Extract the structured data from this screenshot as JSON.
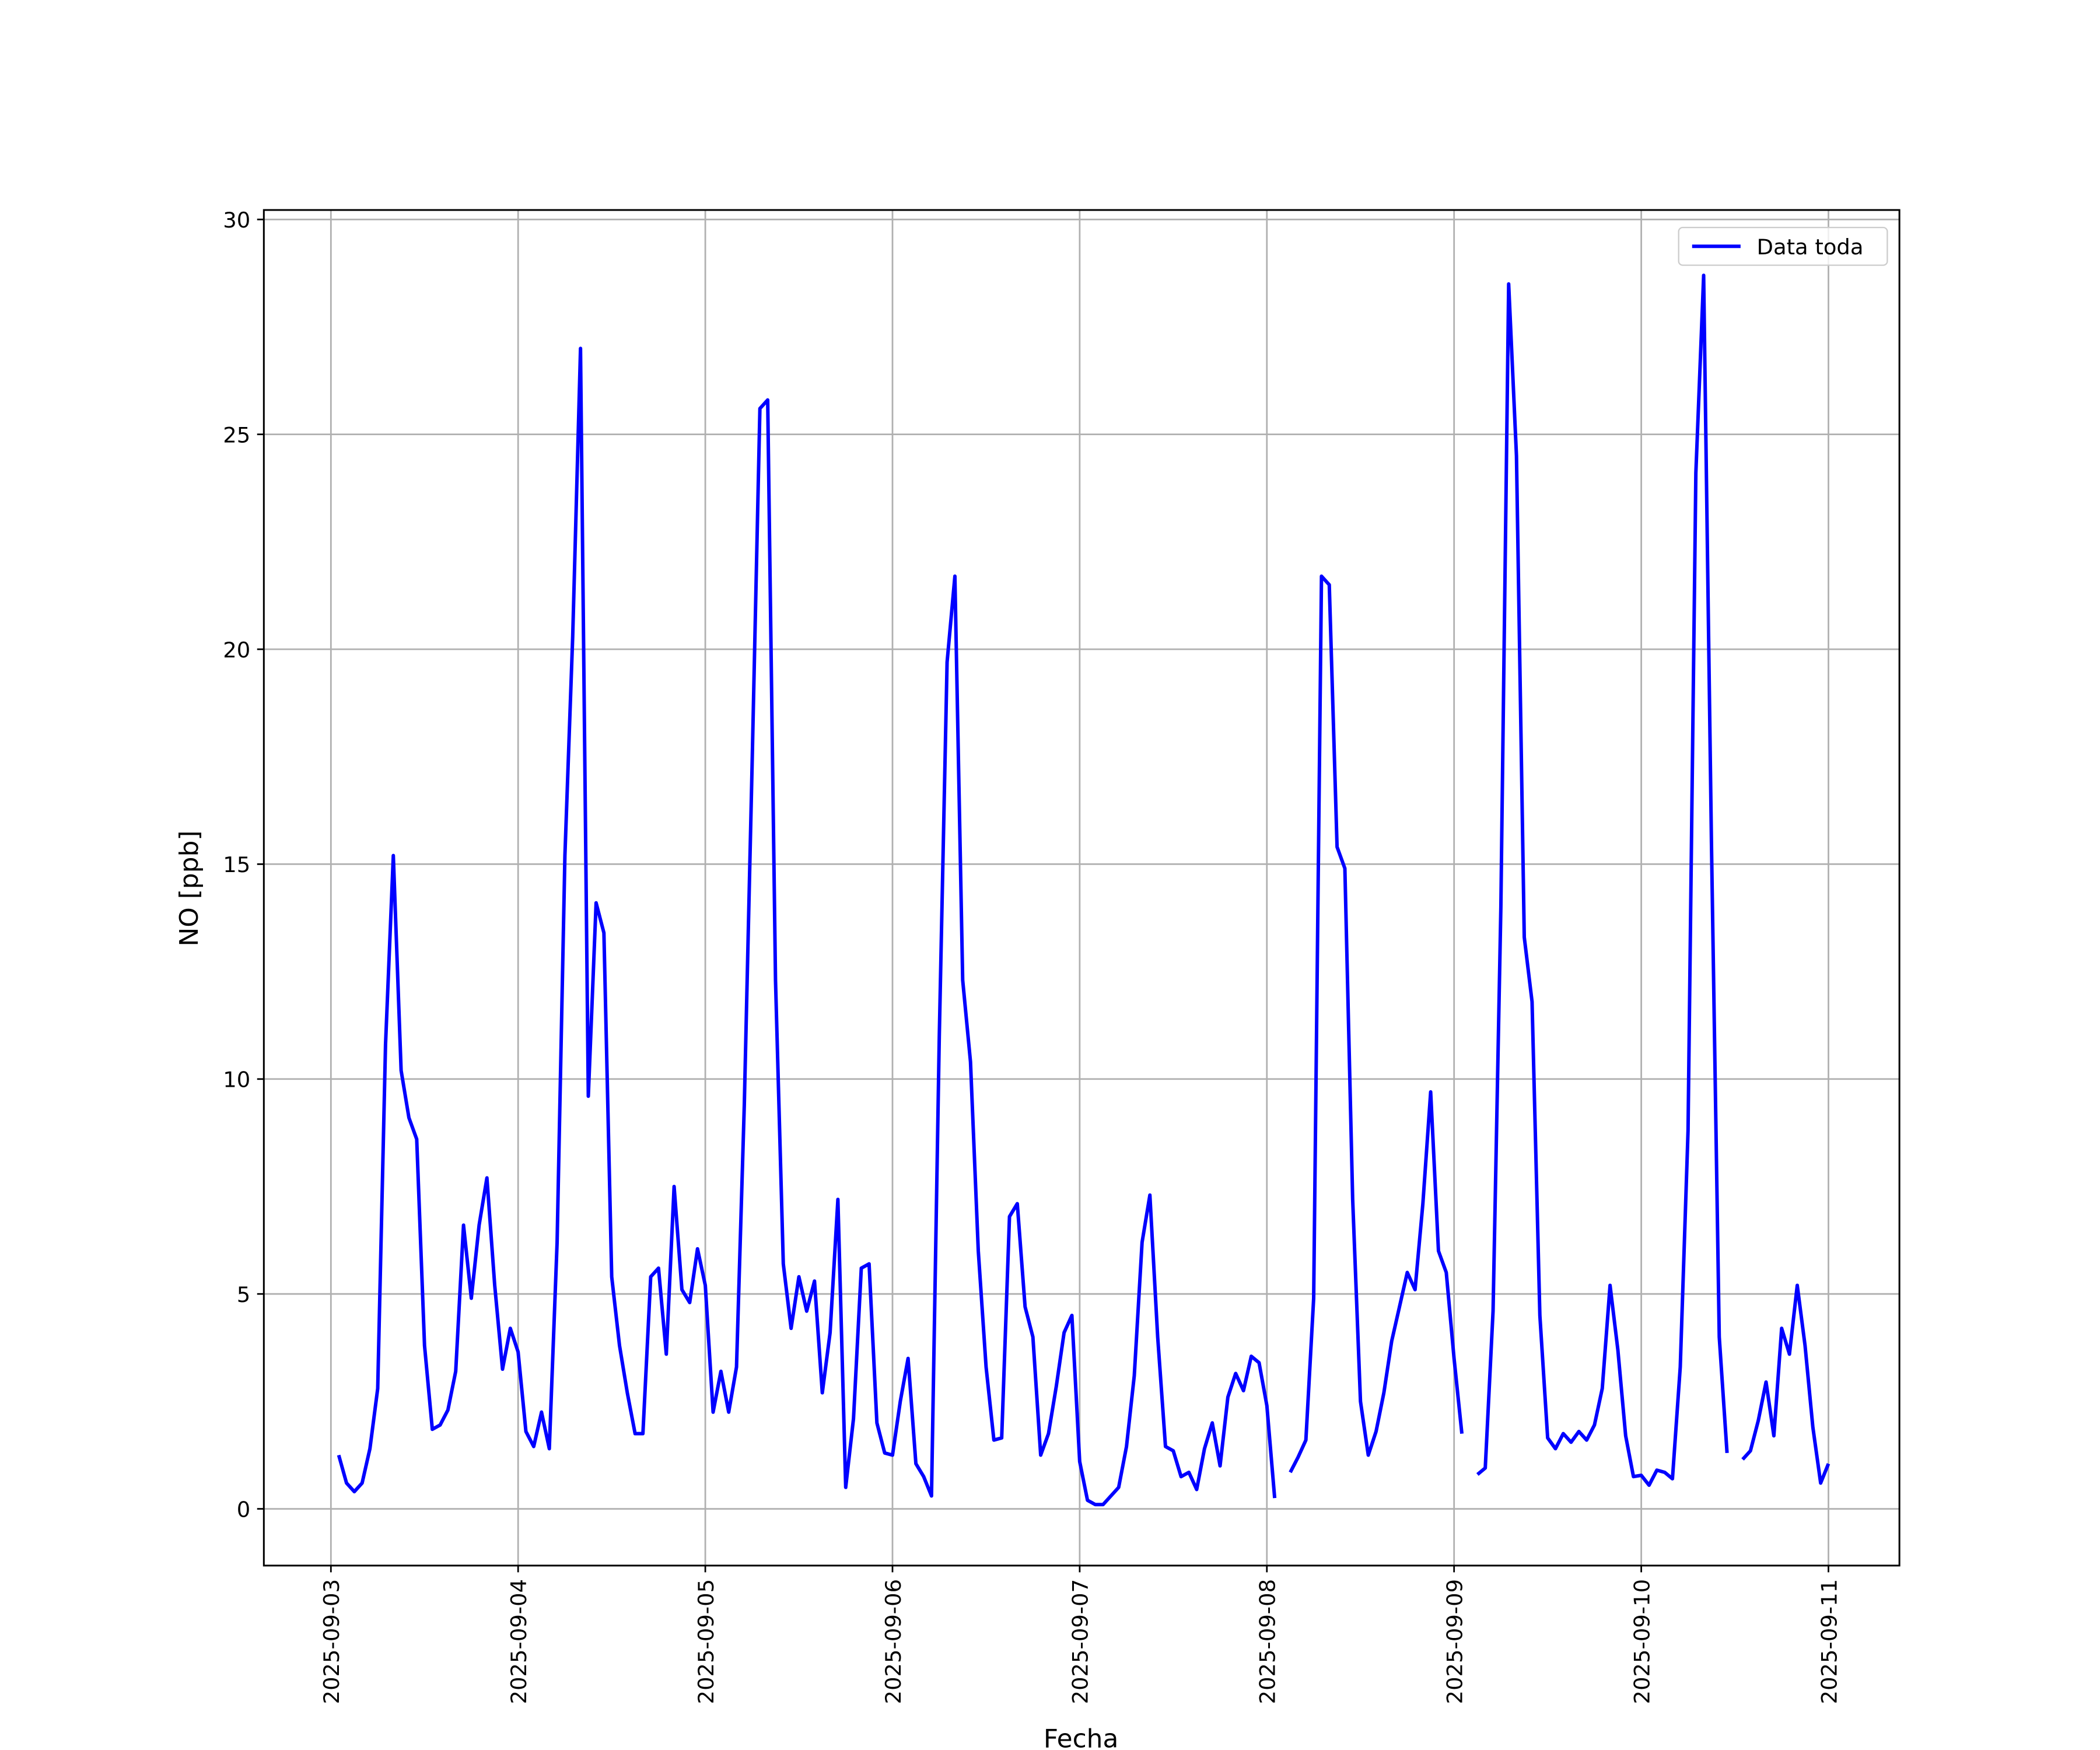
{
  "chart_data": {
    "type": "line",
    "xlabel": "Fecha",
    "ylabel": "NO [ppb]",
    "x": [
      1,
      2,
      3,
      4,
      5,
      6,
      7,
      8,
      9,
      10,
      11,
      12,
      13,
      14,
      15,
      16,
      17,
      18,
      19,
      20,
      21,
      22,
      23,
      24,
      25,
      26,
      27,
      28,
      29,
      30,
      31,
      32,
      33,
      34,
      35,
      36,
      37,
      38,
      39,
      40,
      41,
      42,
      43,
      44,
      45,
      46,
      47,
      48,
      49,
      50,
      51,
      52,
      53,
      54,
      55,
      56,
      57,
      58,
      59,
      60,
      61,
      62,
      63,
      64,
      65,
      66,
      67,
      68,
      69,
      70,
      71,
      72,
      73,
      74,
      75,
      76,
      77,
      78,
      79,
      80,
      81,
      82,
      83,
      84,
      85,
      86,
      87,
      88,
      89,
      90,
      91,
      92,
      93,
      94,
      95,
      96,
      97,
      98,
      99,
      100,
      101,
      102,
      103,
      104,
      105,
      106,
      107,
      108,
      109,
      110,
      111,
      112,
      113,
      114,
      115,
      116,
      117,
      118,
      119,
      120,
      121,
      122,
      123,
      124,
      125,
      126,
      127,
      128,
      129,
      130,
      131,
      132,
      133,
      134,
      135,
      136,
      137,
      138,
      139,
      140,
      141,
      142,
      143,
      144,
      145,
      146,
      147,
      148,
      149,
      150,
      151,
      152,
      153,
      154,
      155,
      156,
      157,
      158,
      159,
      160,
      161,
      162,
      163,
      164,
      165,
      166,
      167,
      168,
      169,
      170,
      171,
      172,
      173,
      174,
      175,
      176,
      177,
      178,
      179,
      180,
      181,
      182,
      183,
      184,
      185,
      186,
      187,
      188,
      189,
      190,
      191,
      192
    ],
    "series": [
      {
        "name": "Data toda",
        "color": "#0000ff",
        "values": [
          1.25,
          0.6,
          0.4,
          0.6,
          1.4,
          2.8,
          10.8,
          15.2,
          10.2,
          9.1,
          8.6,
          3.8,
          1.85,
          1.95,
          2.3,
          3.2,
          6.6,
          4.9,
          6.6,
          7.7,
          5.2,
          3.25,
          4.2,
          3.65,
          1.8,
          1.45,
          2.25,
          1.4,
          6.2,
          15.2,
          20.3,
          27.0,
          9.6,
          14.1,
          13.4,
          5.4,
          3.8,
          2.7,
          1.75,
          1.75,
          5.4,
          5.6,
          3.6,
          7.5,
          5.1,
          4.8,
          6.05,
          5.2,
          2.25,
          3.2,
          2.25,
          3.3,
          9.4,
          17.3,
          25.6,
          25.8,
          12.3,
          5.7,
          4.2,
          5.4,
          4.6,
          5.3,
          2.7,
          4.1,
          7.2,
          0.5,
          2.1,
          5.6,
          5.7,
          2.0,
          1.3,
          1.25,
          2.5,
          3.5,
          1.05,
          0.75,
          0.3,
          11.0,
          19.7,
          21.7,
          12.3,
          10.4,
          6.0,
          3.3,
          1.6,
          1.65,
          6.8,
          7.1,
          4.7,
          4.0,
          1.25,
          1.75,
          2.85,
          4.1,
          4.5,
          1.1,
          0.2,
          0.1,
          0.1,
          0.3,
          0.5,
          1.45,
          3.1,
          6.2,
          7.3,
          4.0,
          1.45,
          1.35,
          0.75,
          0.85,
          0.45,
          1.4,
          2.0,
          1.0,
          2.6,
          3.15,
          2.75,
          3.55,
          3.4,
          2.4,
          0.25,
          null,
          0.85,
          1.2,
          1.6,
          4.9,
          21.7,
          21.5,
          15.4,
          14.9,
          7.2,
          2.5,
          1.25,
          1.8,
          2.7,
          3.9,
          4.7,
          5.5,
          5.1,
          7.1,
          9.7,
          6.0,
          5.5,
          3.5,
          1.75,
          null,
          0.8,
          0.95,
          4.6,
          14.0,
          28.5,
          24.5,
          13.3,
          11.8,
          4.5,
          1.65,
          1.4,
          1.75,
          1.55,
          1.8,
          1.6,
          1.95,
          2.8,
          5.2,
          3.7,
          1.7,
          0.75,
          0.78,
          0.55,
          0.9,
          0.85,
          0.7,
          3.3,
          8.8,
          24.1,
          28.7,
          15.5,
          4.0,
          1.3,
          null,
          1.15,
          1.35,
          2.05,
          2.95,
          1.7,
          4.2,
          3.6,
          5.2,
          3.8,
          1.9,
          0.6,
          1.05
        ]
      }
    ],
    "xlim": [
      -8.6,
      201.1
    ],
    "xticks": [
      {
        "value": 0,
        "label": "2025-09-03"
      },
      {
        "value": 24,
        "label": "2025-09-04"
      },
      {
        "value": 48,
        "label": "2025-09-05"
      },
      {
        "value": 72,
        "label": "2025-09-06"
      },
      {
        "value": 96,
        "label": "2025-09-07"
      },
      {
        "value": 120,
        "label": "2025-09-08"
      },
      {
        "value": 144,
        "label": "2025-09-09"
      },
      {
        "value": 168,
        "label": "2025-09-10"
      },
      {
        "value": 192,
        "label": "2025-09-11"
      }
    ],
    "ylim": [
      -1.32,
      30.22
    ],
    "yticks": [
      0,
      5,
      10,
      15,
      20,
      25,
      30
    ],
    "grid": true,
    "legend": "upper right"
  }
}
